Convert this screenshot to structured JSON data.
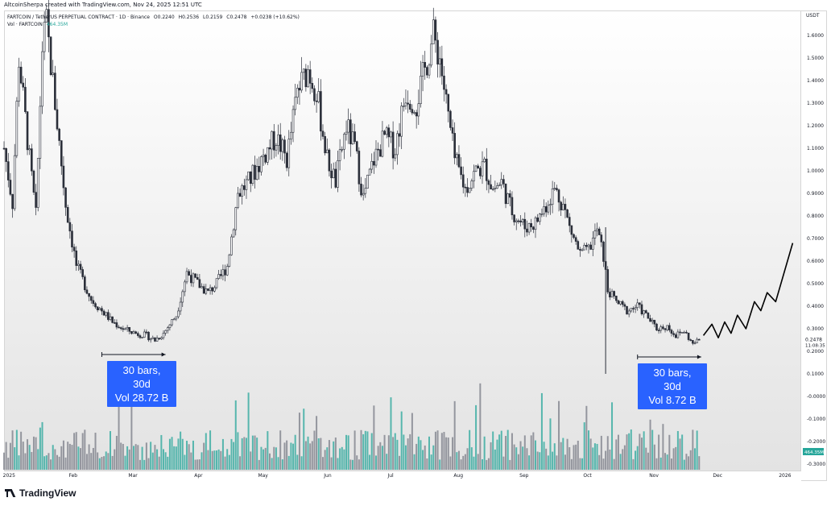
{
  "header": {
    "creator": "AltcoinSherpa created with TradingView.com, Nov 24, 2025 12:51 UTC"
  },
  "legend": {
    "symbol": "FARTCOIN / TetherUS PERPETUAL CONTRACT · 1D · Binance",
    "open": "O0.2240",
    "high": "H0.2536",
    "low": "L0.2159",
    "close": "C0.2478",
    "change": "+0.0238 (+10.62%)",
    "vol_label": "Vol · FARTCOIN",
    "vol_value": "464.35M"
  },
  "price_axis": {
    "currency": "USDT",
    "ticks": [
      "1.6000",
      "1.5000",
      "1.4000",
      "1.3000",
      "1.2000",
      "1.1000",
      "1.0000",
      "0.9000",
      "0.8000",
      "0.7000",
      "0.6000",
      "0.5000",
      "0.4000",
      "0.3000",
      "0.2000",
      "0.1000",
      "-0.0000",
      "-0.1000",
      "-0.2000",
      "-0.3000"
    ],
    "last_price": "0.2478",
    "countdown": "11:08:35",
    "volume_tag": "464.35M"
  },
  "time_axis": {
    "ticks": [
      "2025",
      "Feb",
      "Mar",
      "Apr",
      "May",
      "Jun",
      "Jul",
      "Aug",
      "Sep",
      "Oct",
      "Nov",
      "Dec",
      "2026"
    ]
  },
  "annotations": [
    {
      "line1": "30 bars, 30d",
      "line2": "Vol 28.72 B"
    },
    {
      "line1": "30 bars, 30d",
      "line2": "Vol 8.72 B"
    }
  ],
  "colors": {
    "candles": "#2a2e39",
    "volume": "#26a69a",
    "volume_down": "#787b86",
    "annotation": "#2962ff",
    "projection": "#000000"
  },
  "chart_data": {
    "type": "candlestick",
    "interval": "1D",
    "exchange": "Binance",
    "y_unit": "USDT",
    "ylim": [
      -0.3,
      1.65
    ],
    "x_range": [
      "2024-12-31",
      "2026-01-10"
    ],
    "close_path": [
      [
        "2024-12-31",
        1.1
      ],
      [
        "2025-01-04",
        0.86
      ],
      [
        "2025-01-07",
        1.5
      ],
      [
        "2025-01-12",
        1.05
      ],
      [
        "2025-01-15",
        0.8
      ],
      [
        "2025-01-18",
        1.55
      ],
      [
        "2025-01-20",
        1.65
      ],
      [
        "2025-01-24",
        1.3
      ],
      [
        "2025-01-29",
        0.85
      ],
      [
        "2025-02-03",
        0.58
      ],
      [
        "2025-02-10",
        0.43
      ],
      [
        "2025-02-15",
        0.38
      ],
      [
        "2025-02-20",
        0.33
      ],
      [
        "2025-02-25",
        0.3
      ],
      [
        "2025-03-03",
        0.28
      ],
      [
        "2025-03-08",
        0.27
      ],
      [
        "2025-03-12",
        0.25
      ],
      [
        "2025-03-16",
        0.28
      ],
      [
        "2025-03-22",
        0.36
      ],
      [
        "2025-03-27",
        0.55
      ],
      [
        "2025-04-01",
        0.5
      ],
      [
        "2025-04-06",
        0.46
      ],
      [
        "2025-04-10",
        0.5
      ],
      [
        "2025-04-15",
        0.58
      ],
      [
        "2025-04-20",
        0.9
      ],
      [
        "2025-04-25",
        0.95
      ],
      [
        "2025-05-01",
        1.05
      ],
      [
        "2025-05-08",
        1.15
      ],
      [
        "2025-05-13",
        1.05
      ],
      [
        "2025-05-18",
        1.35
      ],
      [
        "2025-05-23",
        1.45
      ],
      [
        "2025-05-27",
        1.35
      ],
      [
        "2025-06-01",
        1.05
      ],
      [
        "2025-06-05",
        0.95
      ],
      [
        "2025-06-10",
        1.2
      ],
      [
        "2025-06-14",
        1.1
      ],
      [
        "2025-06-18",
        0.88
      ],
      [
        "2025-06-23",
        1.05
      ],
      [
        "2025-06-28",
        1.15
      ],
      [
        "2025-07-03",
        1.1
      ],
      [
        "2025-07-08",
        1.35
      ],
      [
        "2025-07-13",
        1.3
      ],
      [
        "2025-07-17",
        1.45
      ],
      [
        "2025-07-21",
        1.6
      ],
      [
        "2025-07-24",
        1.5
      ],
      [
        "2025-07-27",
        1.3
      ],
      [
        "2025-07-31",
        1.05
      ],
      [
        "2025-08-05",
        0.92
      ],
      [
        "2025-08-10",
        1.0
      ],
      [
        "2025-08-14",
        1.02
      ],
      [
        "2025-08-18",
        0.92
      ],
      [
        "2025-08-22",
        0.95
      ],
      [
        "2025-08-27",
        0.82
      ],
      [
        "2025-09-02",
        0.75
      ],
      [
        "2025-09-07",
        0.77
      ],
      [
        "2025-09-12",
        0.85
      ],
      [
        "2025-09-16",
        0.92
      ],
      [
        "2025-09-20",
        0.85
      ],
      [
        "2025-09-23",
        0.75
      ],
      [
        "2025-09-28",
        0.63
      ],
      [
        "2025-10-02",
        0.65
      ],
      [
        "2025-10-06",
        0.74
      ],
      [
        "2025-10-09",
        0.62
      ],
      [
        "2025-10-11",
        0.47
      ],
      [
        "2025-10-15",
        0.42
      ],
      [
        "2025-10-20",
        0.38
      ],
      [
        "2025-10-25",
        0.4
      ],
      [
        "2025-10-29",
        0.36
      ],
      [
        "2025-11-03",
        0.3
      ],
      [
        "2025-11-08",
        0.31
      ],
      [
        "2025-11-12",
        0.27
      ],
      [
        "2025-11-16",
        0.29
      ],
      [
        "2025-11-20",
        0.23
      ],
      [
        "2025-11-23",
        0.25
      ]
    ],
    "projection_path": [
      [
        "2025-11-25",
        0.27
      ],
      [
        "2025-11-29",
        0.32
      ],
      [
        "2025-12-02",
        0.26
      ],
      [
        "2025-12-05",
        0.33
      ],
      [
        "2025-12-08",
        0.28
      ],
      [
        "2025-12-11",
        0.36
      ],
      [
        "2025-12-15",
        0.3
      ],
      [
        "2025-12-19",
        0.42
      ],
      [
        "2025-12-22",
        0.38
      ],
      [
        "2025-12-25",
        0.46
      ],
      [
        "2025-12-29",
        0.42
      ],
      [
        "2026-01-02",
        0.55
      ],
      [
        "2026-01-06",
        0.68
      ]
    ],
    "ranges": [
      {
        "start": "2025-02-15",
        "end": "2025-03-17",
        "bars": 30,
        "days": 30,
        "volume": "28.72 B"
      },
      {
        "start": "2025-10-25",
        "end": "2025-11-24",
        "bars": 30,
        "days": 30,
        "volume": "8.72 B"
      }
    ]
  }
}
